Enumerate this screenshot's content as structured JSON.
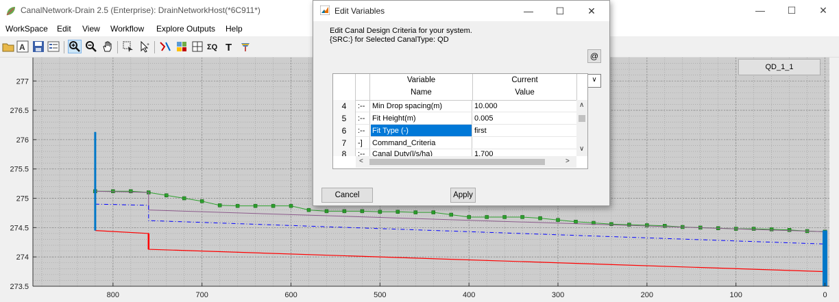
{
  "window": {
    "title": "CanalNetwork-Drain 2.5  (Enterprise): DrainNetworkHost(*6C911*)",
    "minimize": "—",
    "maximize": "☐",
    "close": "✕"
  },
  "menu": [
    "WorkSpace",
    "Edit",
    "View",
    "Workflow",
    "Explore Outputs",
    "Help"
  ],
  "toolbar_icons": [
    "open-folder-icon",
    "font-icon",
    "save-icon",
    "list-icon",
    "zoom-in-icon",
    "zoom-out-icon",
    "pan-hand-icon",
    "select-icon",
    "pointer-icon",
    "draw-line-icon",
    "calc-icon",
    "grid-icon",
    "sigma-icon",
    "text-icon",
    "brush-icon"
  ],
  "plot": {
    "button_label": "QD_1_1",
    "background": "#cdcdcd"
  },
  "chart_data": {
    "type": "line",
    "xlim": [
      890,
      -5
    ],
    "ylim": [
      273.5,
      277.4
    ],
    "xticks": [
      "800",
      "700",
      "600",
      "500",
      "400",
      "300",
      "200",
      "100",
      "0"
    ],
    "yticks": [
      "277",
      "276.5",
      "276",
      "275.5",
      "275",
      "274.5",
      "274",
      "273.5"
    ],
    "grid": true,
    "series": [
      {
        "color": "#2ca02c",
        "style": "line-markers",
        "x": [
          820,
          800,
          780,
          760,
          740,
          720,
          700,
          680,
          660,
          640,
          620,
          600,
          580,
          560,
          540,
          520,
          500,
          480,
          460,
          440,
          420,
          400,
          380,
          360,
          340,
          320,
          300,
          280,
          260,
          240,
          220,
          200,
          180,
          160,
          140,
          120,
          100,
          80,
          60,
          40,
          20,
          0
        ],
        "y": [
          275.12,
          275.12,
          275.12,
          275.1,
          275.05,
          275.0,
          274.95,
          274.88,
          274.87,
          274.87,
          274.87,
          274.87,
          274.8,
          274.78,
          274.78,
          274.78,
          274.77,
          274.77,
          274.76,
          274.76,
          274.72,
          274.68,
          274.68,
          274.68,
          274.68,
          274.66,
          274.63,
          274.6,
          274.58,
          274.56,
          274.55,
          274.54,
          274.53,
          274.51,
          274.5,
          274.49,
          274.48,
          274.48,
          274.47,
          274.46,
          274.44,
          274.43
        ]
      },
      {
        "color": "#8b5a8b",
        "style": "line",
        "x": [
          820,
          760,
          760,
          0
        ],
        "y": [
          275.12,
          275.1,
          274.8,
          274.43
        ]
      },
      {
        "color": "#0000ff",
        "style": "dash-dot",
        "x": [
          820,
          760,
          760,
          0
        ],
        "y": [
          274.9,
          274.88,
          274.62,
          274.22
        ]
      },
      {
        "color": "#ff0000",
        "style": "line",
        "x": [
          820,
          760,
          760,
          0
        ],
        "y": [
          274.45,
          274.4,
          274.13,
          273.75
        ]
      },
      {
        "color": "#0077c8",
        "style": "vertical-bar",
        "x": [
          820,
          820
        ],
        "y": [
          274.45,
          276.13
        ]
      },
      {
        "color": "#0077c8",
        "style": "vertical-bar",
        "x": [
          0,
          0
        ],
        "y": [
          273.5,
          274.45
        ]
      }
    ]
  },
  "dialog": {
    "title": "Edit Variables",
    "minimize": "—",
    "maximize": "☐",
    "close": "✕",
    "description_line1": "Edit Canal Design Criteria for your system.",
    "description_line2": "{SRC:} for Selected CanalType: QD",
    "at_button": "@",
    "dropdown_arrow": "∨",
    "table": {
      "header_name_line1": "Variable",
      "header_name_line2": "Name",
      "header_value_line1": "Current",
      "header_value_line2": "Value",
      "rows": [
        {
          "num": "4",
          "tree": ":--",
          "name": "Min Drop spacing(m)",
          "value": "10.000"
        },
        {
          "num": "5",
          "tree": ":--",
          "name": "Fit Height(m)",
          "value": "0.005"
        },
        {
          "num": "6",
          "tree": ":--",
          "name": "Fit Type (-)",
          "value": "first"
        },
        {
          "num": "7",
          "tree": "-]",
          "name": "Command_Criteria",
          "value": ""
        },
        {
          "num": "8",
          "tree": ":--",
          "name": "Canal Duty(l/s/ha)",
          "value": "1.700"
        }
      ]
    },
    "scroll_up": "∧",
    "scroll_down": "∨",
    "scroll_left": "<",
    "scroll_right": ">",
    "cancel_label": "Cancel",
    "apply_label": "Apply"
  }
}
